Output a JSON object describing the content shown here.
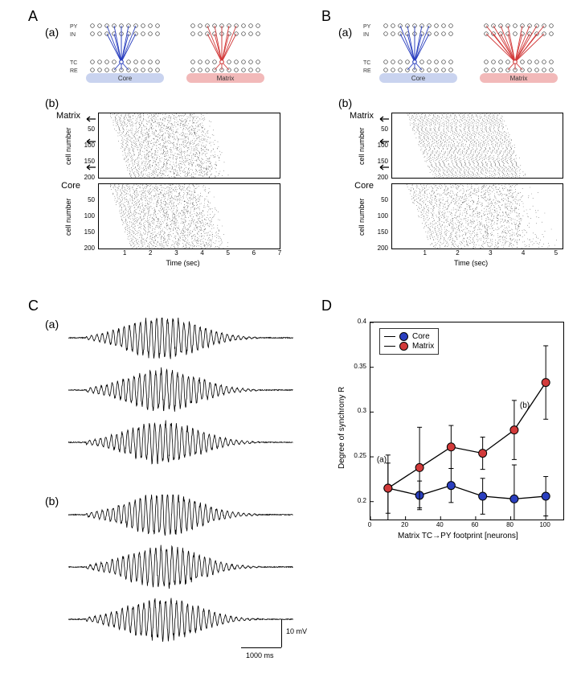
{
  "panels": {
    "A": "A",
    "B": "B",
    "C": "C",
    "D": "D",
    "a": "(a)",
    "b": "(b)"
  },
  "network": {
    "row_labels": {
      "py": "PY",
      "in": "IN",
      "tc": "TC",
      "re": "RE"
    },
    "core_label": "Core",
    "matrix_label": "Matrix",
    "core_color": "#2a3fbf",
    "matrix_color": "#d23a3a",
    "core_fill": "#c9d3ef",
    "matrix_fill": "#f2b9b9",
    "circle_stroke": "#333333",
    "n_per_row": 10,
    "A": {
      "matrix_fanout": 3
    },
    "B": {
      "matrix_fanout": 8
    }
  },
  "raster": {
    "matrix_label": "Matrix",
    "core_label": "Core",
    "ylabel": "cell number",
    "xlabel": "Time (sec)",
    "yticks": [
      50,
      100,
      150,
      200
    ],
    "ymax": 200,
    "A": {
      "xticks": [
        1,
        2,
        3,
        4,
        5,
        6,
        7
      ],
      "xmax": 7
    },
    "B": {
      "xticks": [
        1,
        2,
        3,
        4,
        5
      ],
      "xmax": 5.2
    }
  },
  "traces": {
    "scale_v_label": "10 mV",
    "scale_h_label": "1000 ms",
    "duration_ms": 7000,
    "n_traces": 3
  },
  "chartD": {
    "xlabel": "Matrix TC→PY footprint [neurons]",
    "ylabel": "Degree of synchrony R",
    "xlim": [
      0,
      110
    ],
    "ylim": [
      0.18,
      0.4
    ],
    "xticks": [
      0,
      20,
      40,
      60,
      80,
      100
    ],
    "yticks": [
      0.2,
      0.25,
      0.3,
      0.35,
      0.4
    ],
    "legend": {
      "core": "Core",
      "matrix": "Matrix"
    },
    "core_color": "#2a3fbf",
    "matrix_color": "#d23a3a",
    "line_color": "#000000",
    "x": [
      10,
      28,
      46,
      64,
      82,
      100
    ],
    "matrix_y": [
      0.215,
      0.238,
      0.261,
      0.254,
      0.28,
      0.333
    ],
    "matrix_err": [
      0.037,
      0.045,
      0.024,
      0.018,
      0.033,
      0.041
    ],
    "core_y": [
      0.215,
      0.207,
      0.218,
      0.206,
      0.203,
      0.206
    ],
    "core_err": [
      0.028,
      0.016,
      0.019,
      0.02,
      0.038,
      0.022
    ],
    "ann_a": "(a)",
    "ann_b": "(b)"
  }
}
